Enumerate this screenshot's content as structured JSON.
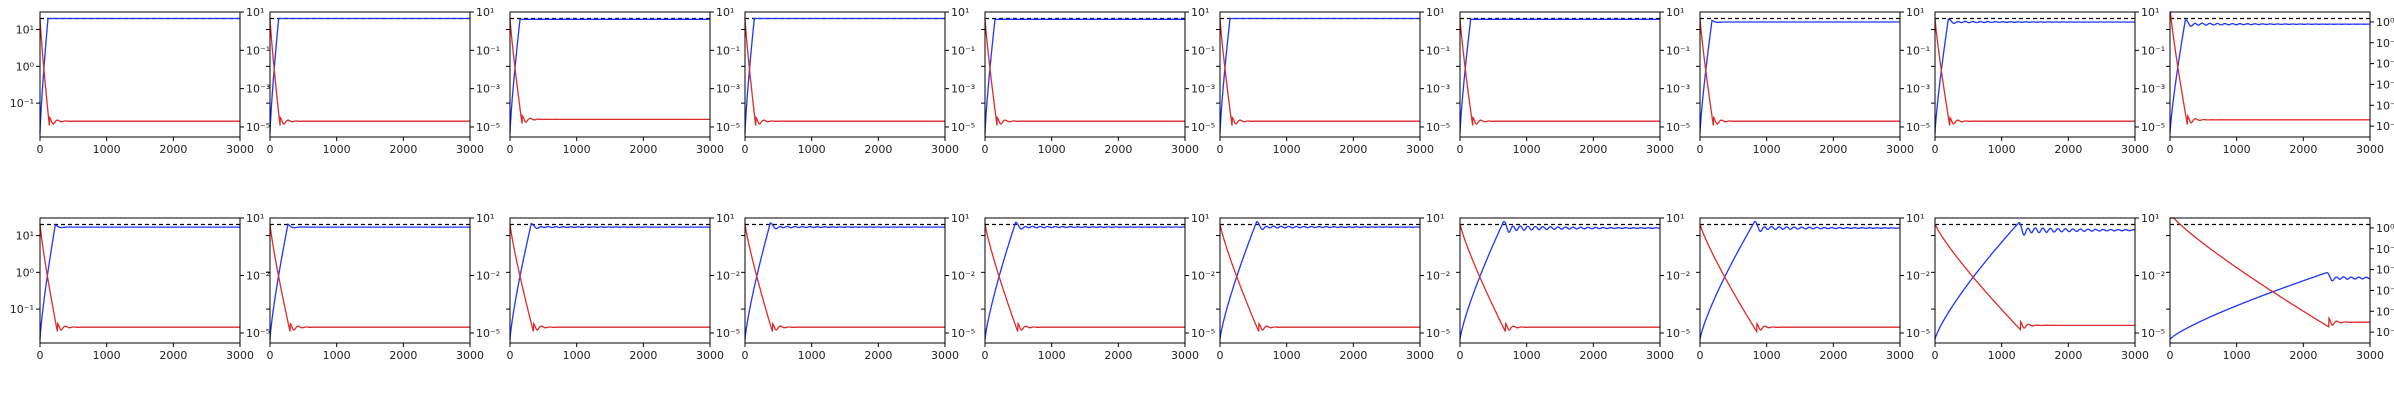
{
  "figure": {
    "rows": 2,
    "cols": 10,
    "colors": {
      "blue": "#1f33ff",
      "red": "#dd2a2a",
      "ref_line": "#000000",
      "axes": "#000000"
    }
  },
  "chart_data": {
    "type": "line",
    "panels_count": 20,
    "x_range": [
      0,
      3000
    ],
    "x_ticks": [
      0,
      1000,
      2000,
      3000
    ],
    "x_tick_labels": [
      "0",
      "1000",
      "2000",
      "3000"
    ],
    "left_axis": {
      "scale": "log",
      "range": [
        0.012,
        30
      ],
      "ticks": [
        0.1,
        1,
        10
      ],
      "tick_labels": [
        "10⁻¹",
        "10⁰",
        "10¹"
      ]
    },
    "right_axis_row0": {
      "scale": "log",
      "range": [
        3e-06,
        10
      ],
      "ticks": [
        1e-05,
        0.001,
        0.1,
        10
      ],
      "tick_labels": [
        "10⁻⁵",
        "10⁻³",
        "10⁻¹",
        "10¹"
      ]
    },
    "right_axis_row0_last": {
      "scale": "log",
      "range": [
        3e-06,
        3
      ],
      "ticks": [
        1e-05,
        0.0001,
        0.001,
        0.01,
        0.1,
        1
      ],
      "tick_labels": [
        "10⁻⁵",
        "10⁻⁴",
        "10⁻³",
        "10⁻²",
        "10⁻¹",
        "10⁰"
      ]
    },
    "right_axis_row1": {
      "scale": "log",
      "range": [
        3e-06,
        10
      ],
      "ticks": [
        1e-05,
        0.01,
        10
      ],
      "tick_labels": [
        "10⁻⁵",
        "10⁻²",
        "10¹"
      ]
    },
    "right_axis_row1_last": {
      "scale": "log",
      "range": [
        3e-06,
        3
      ],
      "ticks": [
        1e-05,
        0.0001,
        0.001,
        0.01,
        0.1,
        1
      ],
      "tick_labels": [
        "10⁻⁵",
        "10⁻⁴",
        "10⁻³",
        "10⁻²",
        "10⁻¹",
        "10⁰"
      ]
    },
    "reference_line_value": 20,
    "panels": [
      {
        "row": 0,
        "col": 0,
        "rise_end": 120,
        "settle": 20,
        "overshoot": 0,
        "ripple": 0,
        "decay_end": 140,
        "red_floor": 2e-05
      },
      {
        "row": 0,
        "col": 1,
        "rise_end": 130,
        "settle": 20,
        "overshoot": 0,
        "ripple": 0,
        "decay_end": 150,
        "red_floor": 2e-05
      },
      {
        "row": 0,
        "col": 2,
        "rise_end": 150,
        "settle": 19,
        "overshoot": 0,
        "ripple": 0,
        "decay_end": 180,
        "red_floor": 2.5e-05
      },
      {
        "row": 0,
        "col": 3,
        "rise_end": 140,
        "settle": 20,
        "overshoot": 0,
        "ripple": 0,
        "decay_end": 160,
        "red_floor": 2e-05
      },
      {
        "row": 0,
        "col": 4,
        "rise_end": 150,
        "settle": 19,
        "overshoot": 0,
        "ripple": 0,
        "decay_end": 180,
        "red_floor": 2e-05
      },
      {
        "row": 0,
        "col": 5,
        "rise_end": 150,
        "settle": 20,
        "overshoot": 0,
        "ripple": 0,
        "decay_end": 180,
        "red_floor": 2e-05
      },
      {
        "row": 0,
        "col": 6,
        "rise_end": 160,
        "settle": 19,
        "overshoot": 0,
        "ripple": 0,
        "decay_end": 190,
        "red_floor": 2e-05
      },
      {
        "row": 0,
        "col": 7,
        "rise_end": 180,
        "settle": 16,
        "overshoot": 0.1,
        "ripple": 0,
        "decay_end": 200,
        "red_floor": 2e-05
      },
      {
        "row": 0,
        "col": 8,
        "rise_end": 200,
        "settle": 16,
        "overshoot": 0.2,
        "ripple": 0.05,
        "decay_end": 220,
        "red_floor": 2e-05
      },
      {
        "row": 0,
        "col": 9,
        "rise_end": 230,
        "settle": 14,
        "overshoot": 0.3,
        "ripple": 0.08,
        "decay_end": 260,
        "red_floor": 2e-05
      },
      {
        "row": 1,
        "col": 0,
        "rise_end": 230,
        "settle": 17,
        "overshoot": 0.15,
        "ripple": 0,
        "decay_end": 260,
        "red_floor": 2e-05
      },
      {
        "row": 1,
        "col": 1,
        "rise_end": 270,
        "settle": 17,
        "overshoot": 0.2,
        "ripple": 0,
        "decay_end": 300,
        "red_floor": 2e-05
      },
      {
        "row": 1,
        "col": 2,
        "rise_end": 320,
        "settle": 17,
        "overshoot": 0.25,
        "ripple": 0.04,
        "decay_end": 350,
        "red_floor": 2e-05
      },
      {
        "row": 1,
        "col": 3,
        "rise_end": 380,
        "settle": 17,
        "overshoot": 0.3,
        "ripple": 0.05,
        "decay_end": 410,
        "red_floor": 2e-05
      },
      {
        "row": 1,
        "col": 4,
        "rise_end": 460,
        "settle": 17,
        "overshoot": 0.35,
        "ripple": 0.06,
        "decay_end": 490,
        "red_floor": 2e-05
      },
      {
        "row": 1,
        "col": 5,
        "rise_end": 550,
        "settle": 17,
        "overshoot": 0.4,
        "ripple": 0.08,
        "decay_end": 580,
        "red_floor": 2e-05
      },
      {
        "row": 1,
        "col": 6,
        "rise_end": 650,
        "settle": 16,
        "overshoot": 0.45,
        "ripple": 0.18,
        "decay_end": 680,
        "red_floor": 2e-05
      },
      {
        "row": 1,
        "col": 7,
        "rise_end": 820,
        "settle": 16,
        "overshoot": 0.5,
        "ripple": 0.12,
        "decay_end": 850,
        "red_floor": 2e-05
      },
      {
        "row": 1,
        "col": 8,
        "rise_end": 1250,
        "settle": 14,
        "overshoot": 0.55,
        "ripple": 0.2,
        "decay_end": 1280,
        "red_floor": 2.5e-05
      },
      {
        "row": 1,
        "col": 9,
        "rise_end": 2350,
        "settle": 0.7,
        "overshoot": 0.4,
        "ripple": 0.1,
        "decay_end": 2380,
        "red_floor": 3e-05
      }
    ]
  }
}
